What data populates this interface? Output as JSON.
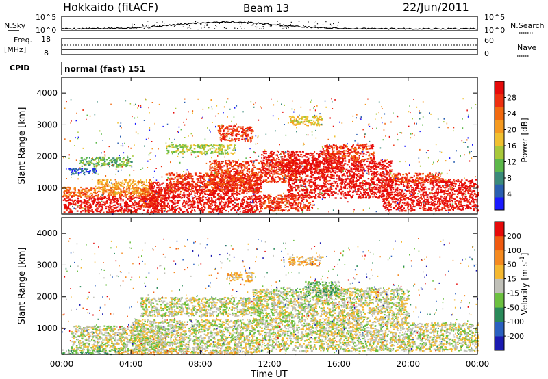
{
  "header": {
    "station": "Hokkaido (fitACF)",
    "beam": "Beam 13",
    "date": "22/Jun/2011"
  },
  "aux": {
    "nsky": {
      "label": "N.Sky",
      "ticks": [
        "10^5",
        "10^0"
      ]
    },
    "nsearch": {
      "label": "N.Search",
      "ticks": [
        "10^5",
        "10^0"
      ]
    },
    "freq": {
      "label_line1": "Freq.",
      "label_line2": "[MHz]",
      "ticks": [
        "18",
        "8"
      ]
    },
    "nave": {
      "label": "Nave",
      "ticks": [
        "60",
        "0"
      ]
    },
    "cpid": {
      "label": "CPID",
      "value": "normal (fast) 151"
    }
  },
  "x_axis": {
    "label": "Time UT",
    "ticks": [
      "00:00",
      "04:00",
      "08:00",
      "12:00",
      "16:00",
      "20:00",
      "00:00"
    ],
    "range_hours": [
      0,
      24
    ]
  },
  "chart_data": [
    {
      "type": "heatmap",
      "name": "power",
      "xlabel": "Time UT",
      "ylabel": "Slant Range [km]",
      "yticks": [
        "1000",
        "2000",
        "3000",
        "4000"
      ],
      "ylim": [
        180,
        4500
      ],
      "xlim": [
        0,
        24
      ],
      "colorbar": {
        "label": "Power [dB]",
        "ticks": [
          "4",
          "8",
          "12",
          "16",
          "20",
          "24",
          "28"
        ],
        "colors": [
          "#1a1aff",
          "#2a5fb0",
          "#3a8a7a",
          "#5cb84a",
          "#a8c83a",
          "#f0c030",
          "#f59a20",
          "#f26a10",
          "#ee3010",
          "#e60a0a"
        ]
      },
      "regions": [
        {
          "t0": 0.0,
          "t1": 5.5,
          "r0": 250,
          "r1": 750,
          "level": 9
        },
        {
          "t0": 0.0,
          "t1": 5.0,
          "r0": 750,
          "r1": 1050,
          "level": 7
        },
        {
          "t0": 2.0,
          "t1": 5.2,
          "r0": 850,
          "r1": 1300,
          "level": 6
        },
        {
          "t0": 1.0,
          "t1": 4.0,
          "r0": 1700,
          "r1": 2000,
          "level": 3
        },
        {
          "t0": 0.4,
          "t1": 2.0,
          "r0": 1450,
          "r1": 1650,
          "level": 1
        },
        {
          "t0": 4.5,
          "t1": 6.0,
          "r0": 400,
          "r1": 1000,
          "level": 8
        },
        {
          "t0": 5.0,
          "t1": 11.5,
          "r0": 250,
          "r1": 1200,
          "level": 9
        },
        {
          "t0": 6.0,
          "t1": 11.5,
          "r0": 900,
          "r1": 1500,
          "level": 8
        },
        {
          "t0": 8.5,
          "t1": 13.5,
          "r0": 1200,
          "r1": 1900,
          "level": 8
        },
        {
          "t0": 11.5,
          "t1": 14.5,
          "r0": 300,
          "r1": 800,
          "level": 8
        },
        {
          "t0": 11.5,
          "t1": 16.0,
          "r0": 1500,
          "r1": 2200,
          "level": 9
        },
        {
          "t0": 13.0,
          "t1": 19.0,
          "r0": 700,
          "r1": 1900,
          "level": 9
        },
        {
          "t0": 15.0,
          "t1": 18.0,
          "r0": 1900,
          "r1": 2400,
          "level": 8
        },
        {
          "t0": 18.5,
          "t1": 24.0,
          "r0": 300,
          "r1": 1300,
          "level": 9
        },
        {
          "t0": 19.0,
          "t1": 22.0,
          "r0": 1200,
          "r1": 1500,
          "level": 8
        },
        {
          "t0": 9.0,
          "t1": 11.0,
          "r0": 2500,
          "r1": 3000,
          "level": 8
        },
        {
          "t0": 13.0,
          "t1": 15.0,
          "r0": 3000,
          "r1": 3300,
          "level": 5
        },
        {
          "t0": 6.0,
          "t1": 10.0,
          "r0": 2100,
          "r1": 2400,
          "level": 4
        }
      ]
    },
    {
      "type": "heatmap",
      "name": "velocity",
      "xlabel": "Time UT",
      "ylabel": "Slant Range [km]",
      "yticks": [
        "1000",
        "2000",
        "3000",
        "4000"
      ],
      "ylim": [
        180,
        4500
      ],
      "xlim": [
        0,
        24
      ],
      "colorbar": {
        "label": "Velocity [m s",
        "label_sup": "-1",
        "label_end": "]",
        "ticks": [
          "200",
          "100",
          "50",
          "15",
          "-15",
          "-50",
          "-100",
          "-200"
        ],
        "colors": [
          "#1a1ab0",
          "#2a60c0",
          "#2a8a5a",
          "#6cc040",
          "#c0c0b8",
          "#f5b830",
          "#f58a20",
          "#f05a10",
          "#e60a0a"
        ]
      },
      "regions": [
        {
          "t0": 0.5,
          "t1": 6.0,
          "r0": 300,
          "r1": 1100,
          "level": 4
        },
        {
          "t0": 4.0,
          "t1": 12.0,
          "r0": 250,
          "r1": 1300,
          "level": 4
        },
        {
          "t0": 4.5,
          "t1": 11.5,
          "r0": 1400,
          "r1": 2000,
          "level": 4
        },
        {
          "t0": 11.0,
          "t1": 20.0,
          "r0": 1200,
          "r1": 2300,
          "level": 4
        },
        {
          "t0": 12.0,
          "t1": 24.0,
          "r0": 300,
          "r1": 1200,
          "level": 4
        },
        {
          "t0": 0.0,
          "t1": 3.5,
          "r0": 200,
          "r1": 350,
          "level": 3
        },
        {
          "t0": 3.0,
          "t1": 11.0,
          "r0": 200,
          "r1": 300,
          "level": 5
        },
        {
          "t0": 14.0,
          "t1": 16.0,
          "r0": 2000,
          "r1": 2500,
          "level": 3
        },
        {
          "t0": 13.0,
          "t1": 15.0,
          "r0": 3000,
          "r1": 3300,
          "level": 5
        },
        {
          "t0": 9.5,
          "t1": 11.0,
          "r0": 2500,
          "r1": 2800,
          "level": 5
        }
      ]
    }
  ]
}
